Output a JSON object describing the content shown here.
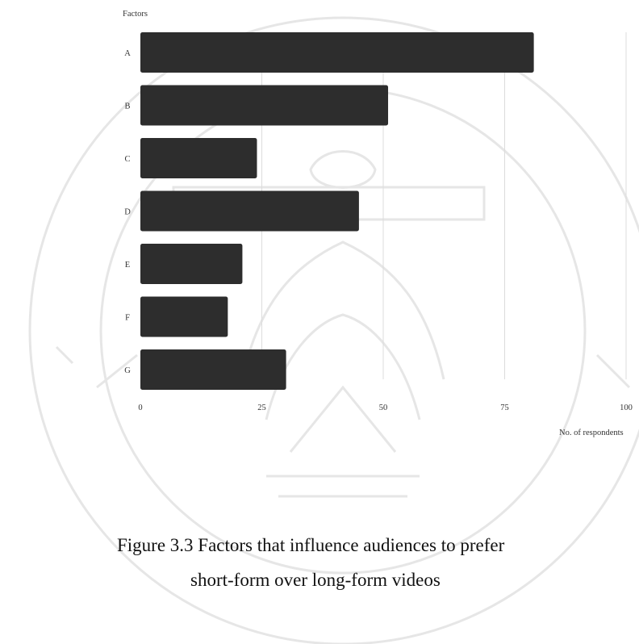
{
  "chart_data": {
    "type": "bar",
    "orientation": "horizontal",
    "ylabel": "Factors",
    "xlabel": "No. of respondents",
    "categories": [
      "A",
      "B",
      "C",
      "D",
      "E",
      "F",
      "G"
    ],
    "values": [
      81,
      51,
      24,
      45,
      21,
      18,
      30
    ],
    "xlim": [
      0,
      100
    ],
    "xticks": [
      "0",
      "25",
      "50",
      "75",
      "100"
    ],
    "grid": "vertical",
    "bar_color": "#2d2d2d",
    "grid_color": "#dcdcdc"
  },
  "caption": {
    "line1": "Figure 3.3  Factors that influence audiences to prefer",
    "line2": "short-form over long-form videos"
  }
}
